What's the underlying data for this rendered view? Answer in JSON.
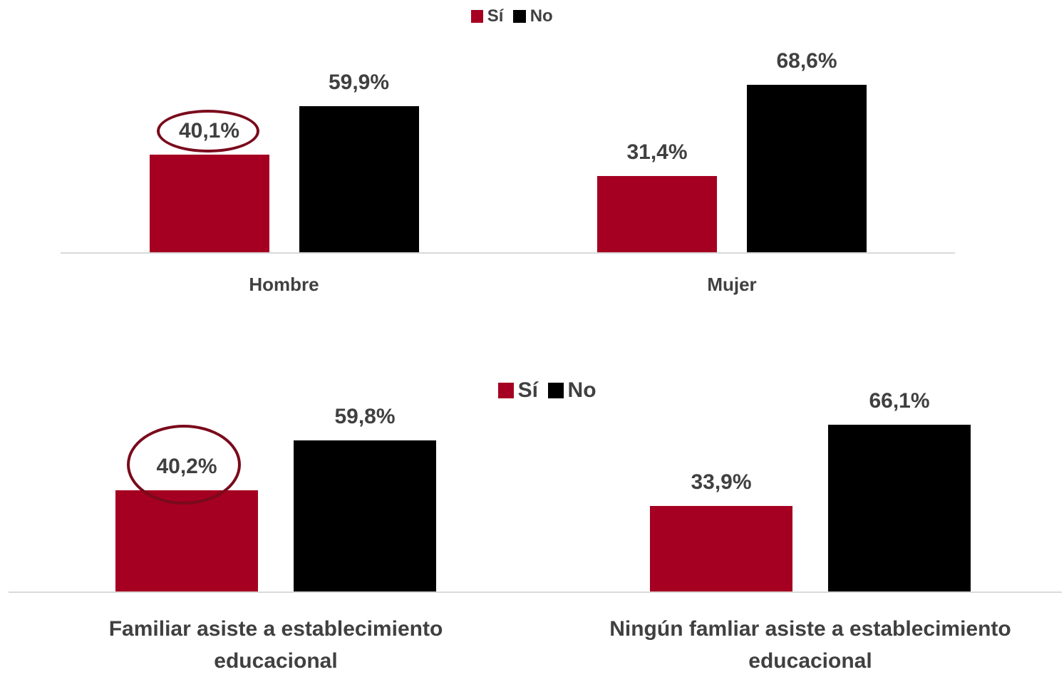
{
  "chart_data": [
    {
      "type": "bar",
      "categories": [
        "Hombre",
        "Mujer"
      ],
      "series": [
        {
          "name": "Sí",
          "color": "#a50021",
          "values": [
            40.1,
            31.4
          ],
          "value_labels": [
            "40,1%",
            "31,4%"
          ]
        },
        {
          "name": "No",
          "color": "#000000",
          "values": [
            59.9,
            68.6
          ],
          "value_labels": [
            "59,9%",
            "68,6%"
          ]
        }
      ],
      "legend": "top"
    },
    {
      "type": "bar",
      "categories": [
        "Familiar asiste a establecimiento educacional",
        "Ningún famliar asiste a establecimiento educacional"
      ],
      "series": [
        {
          "name": "Sí",
          "color": "#a50021",
          "values": [
            40.2,
            33.9
          ],
          "value_labels": [
            "40,2%",
            "33,9%"
          ]
        },
        {
          "name": "No",
          "color": "#000000",
          "values": [
            59.8,
            66.1
          ],
          "value_labels": [
            "59,8%",
            "66,1%"
          ]
        }
      ],
      "legend": "top"
    }
  ]
}
